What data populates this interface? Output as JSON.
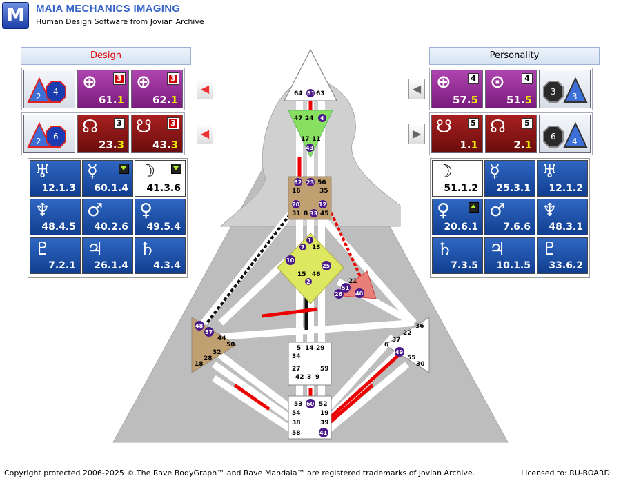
{
  "app": {
    "logo_letter": "M",
    "title": "MAIA MECHANICS IMAGING",
    "subtitle": "Human Design Software from Jovian Archive"
  },
  "design": {
    "header": "Design",
    "top_rows": [
      {
        "triangle": "2",
        "octagon": "4",
        "cells": [
          {
            "symbol": "⊕",
            "value_main": "61.",
            "value_line": "1",
            "box": "3",
            "color": "purple"
          },
          {
            "symbol": "⊕",
            "value_main": "62.",
            "value_line": "1",
            "box": "3",
            "color": "purple"
          }
        ]
      },
      {
        "triangle": "2",
        "octagon": "6",
        "cells": [
          {
            "symbol": "☊",
            "value_main": "23.",
            "value_line": "3",
            "box": "3",
            "color": "red"
          },
          {
            "symbol": "☋",
            "value_main": "43.",
            "value_line": "3",
            "box": "3",
            "color": "red"
          }
        ]
      }
    ],
    "planets": [
      {
        "symbol": "♅",
        "value": "12.1.3",
        "style": "blue",
        "marker": ""
      },
      {
        "symbol": "☿",
        "value": "60.1.4",
        "style": "blue",
        "marker": "down"
      },
      {
        "symbol": "☽",
        "value": "41.3.6",
        "style": "white",
        "marker": "down"
      },
      {
        "symbol": "♆",
        "value": "48.4.5",
        "style": "blue",
        "marker": ""
      },
      {
        "symbol": "♂",
        "value": "40.2.6",
        "style": "blue",
        "marker": ""
      },
      {
        "symbol": "♀",
        "value": "49.5.4",
        "style": "blue",
        "marker": ""
      },
      {
        "symbol": "♇",
        "value": "7.2.1",
        "style": "blue",
        "marker": ""
      },
      {
        "symbol": "♃",
        "value": "26.1.4",
        "style": "blue",
        "marker": ""
      },
      {
        "symbol": "♄",
        "value": "4.3.4",
        "style": "blue",
        "marker": ""
      }
    ]
  },
  "personality": {
    "header": "Personality",
    "top_rows": [
      {
        "triangle": "3",
        "octagon": "3",
        "cells": [
          {
            "symbol": "⊕",
            "value_main": "57.",
            "value_line": "5",
            "box": "4",
            "color": "purple"
          },
          {
            "symbol": "⊙",
            "value_main": "51.",
            "value_line": "5",
            "box": "4",
            "color": "purple"
          }
        ]
      },
      {
        "triangle": "4",
        "octagon": "6",
        "cells": [
          {
            "symbol": "☋",
            "value_main": "1.",
            "value_line": "1",
            "box": "5",
            "color": "red"
          },
          {
            "symbol": "☊",
            "value_main": "2.",
            "value_line": "1",
            "box": "5",
            "color": "red"
          }
        ]
      }
    ],
    "planets": [
      {
        "symbol": "☽",
        "value": "51.1.2",
        "style": "white",
        "marker": ""
      },
      {
        "symbol": "☿",
        "value": "25.3.1",
        "style": "blue",
        "marker": ""
      },
      {
        "symbol": "♅",
        "value": "12.1.2",
        "style": "blue",
        "marker": ""
      },
      {
        "symbol": "♀",
        "value": "20.6.1",
        "style": "blue",
        "marker": "up"
      },
      {
        "symbol": "♂",
        "value": "7.6.6",
        "style": "blue",
        "marker": ""
      },
      {
        "symbol": "♆",
        "value": "48.3.1",
        "style": "blue",
        "marker": ""
      },
      {
        "symbol": "♄",
        "value": "7.3.5",
        "style": "blue",
        "marker": ""
      },
      {
        "symbol": "♃",
        "value": "10.1.5",
        "style": "blue",
        "marker": ""
      },
      {
        "symbol": "♇",
        "value": "33.6.2",
        "style": "blue",
        "marker": ""
      }
    ]
  },
  "bodygraph": {
    "head_gates": [
      "64",
      "61",
      "63"
    ],
    "ajna_gates": [
      "47",
      "24",
      "4",
      "17",
      "11",
      "43"
    ],
    "throat_gates": [
      "62",
      "23",
      "56",
      "16",
      "35",
      "20",
      "12",
      "31",
      "8",
      "33",
      "45"
    ],
    "g_gates": [
      "1",
      "7",
      "13",
      "10",
      "25",
      "15",
      "46",
      "2"
    ],
    "heart_gates": [
      "21",
      "51",
      "26",
      "40"
    ],
    "spleen_gates": [
      "48",
      "57",
      "44",
      "50",
      "32",
      "28",
      "18"
    ],
    "sacral_gates": [
      "5",
      "14",
      "29",
      "34",
      "27",
      "59",
      "42",
      "3",
      "9"
    ],
    "solar_gates": [
      "36",
      "22",
      "37",
      "6",
      "49",
      "55",
      "30"
    ],
    "root_gates": [
      "53",
      "60",
      "52",
      "54",
      "19",
      "38",
      "39",
      "58",
      "41"
    ]
  },
  "footer": {
    "copyright": "Copyright protected 2006-2025 ©.The Rave BodyGraph™ and Rave Mandala™ are registered trademarks of Jovian Archive.",
    "license": "Licensed to: RU-BOARD"
  },
  "colors": {
    "accent": "#3563c9",
    "design_red": "#e00000",
    "planet_blue": "#1c4fa8",
    "purple": "#9a2e9c",
    "dark_red": "#8b1414"
  }
}
